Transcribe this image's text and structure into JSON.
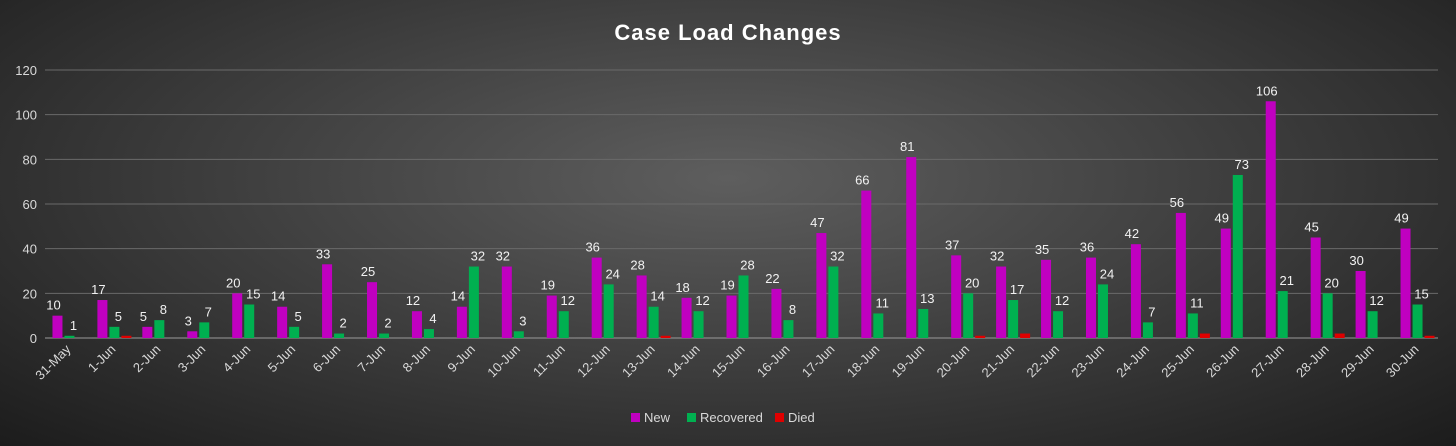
{
  "chart_data": {
    "type": "bar",
    "title": "Case Load Changes",
    "xlabel": "",
    "ylabel": "",
    "ylim": [
      0,
      120
    ],
    "yticks": [
      0,
      20,
      40,
      60,
      80,
      100,
      120
    ],
    "grid": true,
    "legend_position": "bottom",
    "categories": [
      "31-May",
      "1-Jun",
      "2-Jun",
      "3-Jun",
      "4-Jun",
      "5-Jun",
      "6-Jun",
      "7-Jun",
      "8-Jun",
      "9-Jun",
      "10-Jun",
      "11-Jun",
      "12-Jun",
      "13-Jun",
      "14-Jun",
      "15-Jun",
      "16-Jun",
      "17-Jun",
      "18-Jun",
      "19-Jun",
      "20-Jun",
      "21-Jun",
      "22-Jun",
      "23-Jun",
      "24-Jun",
      "25-Jun",
      "26-Jun",
      "27-Jun",
      "28-Jun",
      "29-Jun",
      "30-Jun"
    ],
    "series": [
      {
        "name": "New",
        "color": "#c000c0",
        "labeled": true,
        "values": [
          10,
          17,
          5,
          3,
          20,
          14,
          33,
          25,
          12,
          14,
          32,
          19,
          36,
          28,
          18,
          19,
          22,
          47,
          66,
          81,
          37,
          32,
          35,
          36,
          42,
          56,
          49,
          106,
          45,
          30,
          49
        ]
      },
      {
        "name": "Recovered",
        "color": "#00b050",
        "labeled": true,
        "values": [
          1,
          5,
          8,
          7,
          15,
          5,
          2,
          2,
          4,
          32,
          3,
          12,
          24,
          14,
          12,
          28,
          8,
          32,
          11,
          13,
          20,
          17,
          12,
          24,
          7,
          11,
          73,
          21,
          20,
          12,
          15
        ]
      },
      {
        "name": "Died",
        "color": "#e00000",
        "labeled": false,
        "values": [
          0,
          1,
          0,
          0,
          0,
          0,
          0,
          0,
          0,
          0,
          0,
          0,
          0,
          1,
          0,
          0,
          0,
          0,
          0,
          0,
          1,
          2,
          0,
          0,
          0,
          2,
          0,
          0,
          2,
          0,
          1
        ]
      }
    ]
  }
}
